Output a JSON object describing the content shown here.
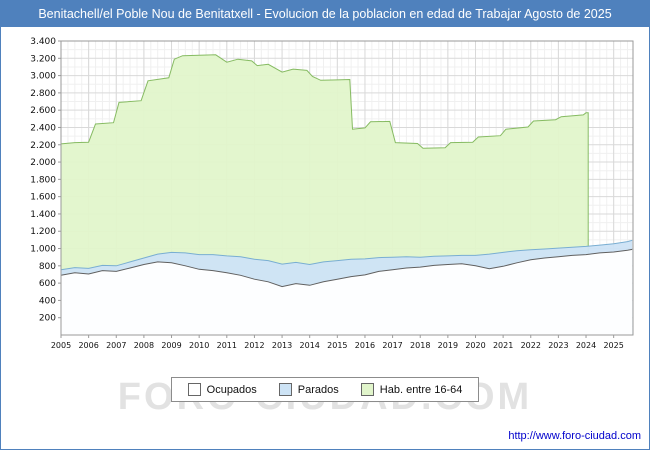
{
  "title": "Benitachell/el Poble Nou de Benitatxell - Evolucion de la poblacion en edad de Trabajar Agosto de 2025",
  "watermark": "FORO-CIUDAD.COM",
  "footer": {
    "link": "http://www.foro-ciudad.com"
  },
  "colors": {
    "title_bar": "#4f81bd",
    "grid_major": "#d9d9d9",
    "grid_minor": "#f0f0f0",
    "axis_border": "#9a9a9a",
    "hab_fill": "#e1f5cb",
    "hab_stroke": "#86bb62",
    "parados_fill": "#cde3f5",
    "parados_stroke": "#79aed2",
    "ocupados_fill": "#ffffff",
    "ocupados_stroke": "#606060",
    "link": "#0000cc",
    "watermark": "#e2e2e2",
    "tick_text": "#111111"
  },
  "legend": [
    {
      "label": "Ocupados",
      "fill": "#ffffff"
    },
    {
      "label": "Parados",
      "fill": "#cde3f5"
    },
    {
      "label": "Hab. entre 16-64",
      "fill": "#e1f5cb"
    }
  ],
  "chart_data": {
    "type": "area",
    "title": "Benitachell/el Poble Nou de Benitatxell - Evolucion de la poblacion en edad de Trabajar Agosto de 2025",
    "xlabel": "",
    "ylabel": "",
    "x_range": [
      2005,
      2025.7
    ],
    "ylim": [
      0,
      3400
    ],
    "y_tick_step": 200,
    "x_ticks": [
      2005,
      2006,
      2007,
      2008,
      2009,
      2010,
      2011,
      2012,
      2013,
      2014,
      2015,
      2016,
      2017,
      2018,
      2019,
      2020,
      2021,
      2022,
      2023,
      2024,
      2025
    ],
    "grid": true,
    "legend_position": "bottom",
    "stacking_note": "Parados is drawn stacked on top of Ocupados; Hab. entre 16-64 is an independent background area ending early 2024",
    "series": [
      {
        "name": "Hab. entre 16-64",
        "points": [
          [
            2005.0,
            2210
          ],
          [
            2005.5,
            2225
          ],
          [
            2006.0,
            2230
          ],
          [
            2006.25,
            2440
          ],
          [
            2006.9,
            2455
          ],
          [
            2007.1,
            2690
          ],
          [
            2007.9,
            2710
          ],
          [
            2008.15,
            2940
          ],
          [
            2008.9,
            2975
          ],
          [
            2009.1,
            3190
          ],
          [
            2009.4,
            3230
          ],
          [
            2010.0,
            3235
          ],
          [
            2010.6,
            3240
          ],
          [
            2011.0,
            3155
          ],
          [
            2011.4,
            3190
          ],
          [
            2011.9,
            3170
          ],
          [
            2012.1,
            3115
          ],
          [
            2012.5,
            3130
          ],
          [
            2013.0,
            3040
          ],
          [
            2013.4,
            3075
          ],
          [
            2013.9,
            3060
          ],
          [
            2014.1,
            2990
          ],
          [
            2014.4,
            2945
          ],
          [
            2015.0,
            2950
          ],
          [
            2015.45,
            2955
          ],
          [
            2015.55,
            2380
          ],
          [
            2016.0,
            2395
          ],
          [
            2016.2,
            2465
          ],
          [
            2016.9,
            2470
          ],
          [
            2017.1,
            2225
          ],
          [
            2017.9,
            2215
          ],
          [
            2018.1,
            2160
          ],
          [
            2018.9,
            2165
          ],
          [
            2019.1,
            2225
          ],
          [
            2019.9,
            2230
          ],
          [
            2020.1,
            2290
          ],
          [
            2020.9,
            2305
          ],
          [
            2021.1,
            2380
          ],
          [
            2021.9,
            2405
          ],
          [
            2022.1,
            2475
          ],
          [
            2022.9,
            2490
          ],
          [
            2023.1,
            2525
          ],
          [
            2023.9,
            2545
          ],
          [
            2024.0,
            2570
          ],
          [
            2024.08,
            2570
          ]
        ]
      },
      {
        "name": "Parados",
        "stack_on": "Ocupados",
        "points": [
          [
            2005.0,
            65
          ],
          [
            2005.5,
            60
          ],
          [
            2006.0,
            65
          ],
          [
            2006.5,
            60
          ],
          [
            2007.0,
            65
          ],
          [
            2007.5,
            70
          ],
          [
            2008.0,
            75
          ],
          [
            2008.5,
            90
          ],
          [
            2009.0,
            120
          ],
          [
            2009.5,
            150
          ],
          [
            2010.0,
            170
          ],
          [
            2010.5,
            185
          ],
          [
            2011.0,
            195
          ],
          [
            2011.5,
            215
          ],
          [
            2012.0,
            230
          ],
          [
            2012.5,
            245
          ],
          [
            2013.0,
            260
          ],
          [
            2013.5,
            245
          ],
          [
            2014.0,
            240
          ],
          [
            2014.5,
            230
          ],
          [
            2015.0,
            215
          ],
          [
            2015.5,
            200
          ],
          [
            2016.0,
            185
          ],
          [
            2016.5,
            160
          ],
          [
            2017.0,
            145
          ],
          [
            2017.5,
            130
          ],
          [
            2018.0,
            115
          ],
          [
            2018.5,
            105
          ],
          [
            2019.0,
            100
          ],
          [
            2019.5,
            95
          ],
          [
            2020.0,
            120
          ],
          [
            2020.5,
            170
          ],
          [
            2021.0,
            160
          ],
          [
            2021.5,
            140
          ],
          [
            2022.0,
            115
          ],
          [
            2022.5,
            105
          ],
          [
            2023.0,
            100
          ],
          [
            2023.5,
            95
          ],
          [
            2024.0,
            95
          ],
          [
            2024.5,
            90
          ],
          [
            2025.0,
            95
          ],
          [
            2025.5,
            100
          ],
          [
            2025.67,
            105
          ]
        ]
      },
      {
        "name": "Ocupados",
        "points": [
          [
            2005.0,
            690
          ],
          [
            2005.5,
            720
          ],
          [
            2006.0,
            705
          ],
          [
            2006.5,
            745
          ],
          [
            2007.0,
            735
          ],
          [
            2007.5,
            775
          ],
          [
            2008.0,
            815
          ],
          [
            2008.5,
            845
          ],
          [
            2009.0,
            835
          ],
          [
            2009.5,
            800
          ],
          [
            2010.0,
            760
          ],
          [
            2010.5,
            745
          ],
          [
            2011.0,
            720
          ],
          [
            2011.5,
            690
          ],
          [
            2012.0,
            645
          ],
          [
            2012.5,
            615
          ],
          [
            2013.0,
            560
          ],
          [
            2013.5,
            595
          ],
          [
            2014.0,
            575
          ],
          [
            2014.5,
            615
          ],
          [
            2015.0,
            645
          ],
          [
            2015.5,
            675
          ],
          [
            2016.0,
            695
          ],
          [
            2016.5,
            735
          ],
          [
            2017.0,
            755
          ],
          [
            2017.5,
            775
          ],
          [
            2018.0,
            785
          ],
          [
            2018.5,
            805
          ],
          [
            2019.0,
            815
          ],
          [
            2019.5,
            825
          ],
          [
            2020.0,
            800
          ],
          [
            2020.5,
            765
          ],
          [
            2021.0,
            795
          ],
          [
            2021.5,
            835
          ],
          [
            2022.0,
            870
          ],
          [
            2022.5,
            890
          ],
          [
            2023.0,
            905
          ],
          [
            2023.5,
            920
          ],
          [
            2024.0,
            930
          ],
          [
            2024.5,
            950
          ],
          [
            2025.0,
            960
          ],
          [
            2025.5,
            980
          ],
          [
            2025.67,
            990
          ]
        ]
      }
    ]
  }
}
